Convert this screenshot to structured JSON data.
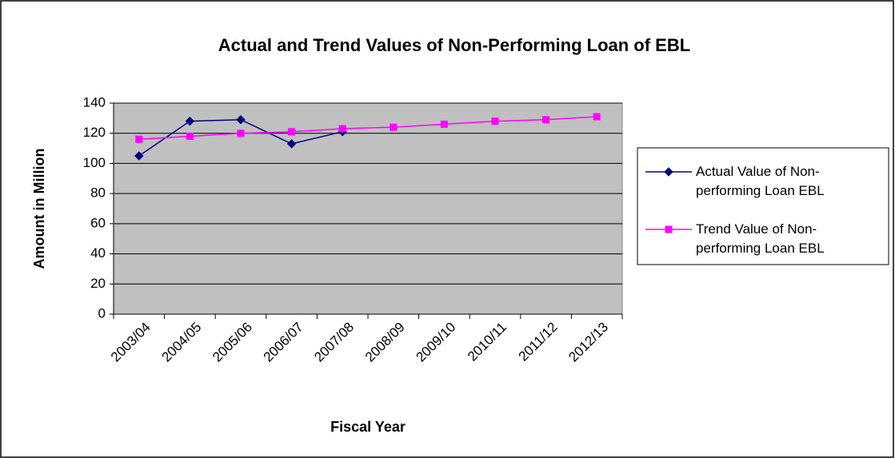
{
  "chart_data": {
    "type": "line",
    "title": "Actual and Trend Values of Non-Performing Loan of EBL",
    "x_label": "Fiscal Year",
    "y_label": "Amount in Million",
    "categories": [
      "2003/04",
      "2004/05",
      "2005/06",
      "2006/07",
      "2007/08",
      "2008/09",
      "2009/10",
      "2010/11",
      "2011/12",
      "2012/13"
    ],
    "series": [
      {
        "name": "Actual Value of Non-performing Loan EBL",
        "color": "#000080",
        "marker": "diamond",
        "values": [
          105,
          128,
          129,
          113,
          121,
          null,
          null,
          null,
          null,
          null
        ]
      },
      {
        "name": "Trend Value of Non-performing Loan EBL",
        "color": "#ff00ff",
        "marker": "square",
        "values": [
          116,
          118,
          120,
          121,
          123,
          124,
          126,
          128,
          129,
          131
        ]
      }
    ],
    "ylim": [
      0,
      140
    ],
    "yticks": [
      0,
      20,
      40,
      60,
      80,
      100,
      120,
      140
    ],
    "grid": true,
    "legend": "right",
    "plot_background": "#c0c0c0"
  }
}
